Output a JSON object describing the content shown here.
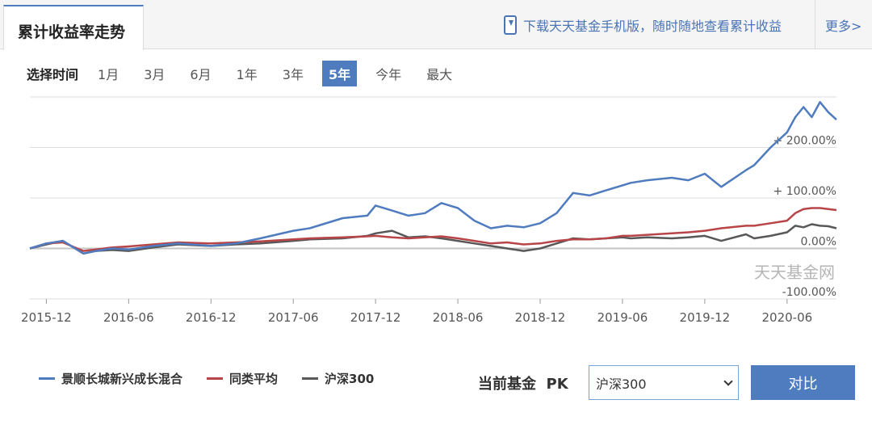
{
  "header": {
    "tab_title": "累计收益率走势",
    "download_text": "下载天天基金手机版，随时随地查看累计收益",
    "more_label": "更多>"
  },
  "range": {
    "label": "选择时间",
    "options": [
      "1月",
      "3月",
      "6月",
      "1年",
      "3年",
      "5年",
      "今年",
      "最大"
    ],
    "active_index": 5
  },
  "chart_data": {
    "type": "line",
    "yticks": [
      "+ 200.00%",
      "+ 100.00%",
      "0.00%",
      "-100.00%"
    ],
    "ytick_values": [
      200,
      100,
      0,
      -100
    ],
    "ylim": [
      -100,
      300
    ],
    "xticks": [
      "2015-12",
      "2016-06",
      "2016-12",
      "2017-06",
      "2017-12",
      "2018-06",
      "2018-12",
      "2019-06",
      "2019-12",
      "2020-06"
    ],
    "xlim": [
      -0.2,
      9.6
    ],
    "watermark": "天天基金网",
    "grid": true,
    "series": [
      {
        "name": "景顺长城新兴成长混合",
        "color": "#4f7bbf",
        "x": [
          -0.2,
          0.0,
          0.2,
          0.45,
          0.6,
          0.8,
          1.0,
          1.3,
          1.6,
          2.0,
          2.3,
          2.6,
          3.0,
          3.2,
          3.6,
          3.9,
          4.0,
          4.2,
          4.4,
          4.6,
          4.8,
          5.0,
          5.2,
          5.4,
          5.6,
          5.8,
          6.0,
          6.2,
          6.4,
          6.6,
          6.8,
          7.0,
          7.1,
          7.3,
          7.6,
          7.8,
          8.0,
          8.2,
          8.5,
          8.6,
          8.8,
          9.0,
          9.1,
          9.2,
          9.3,
          9.4,
          9.5,
          9.6
        ],
        "y": [
          0,
          10,
          15,
          -10,
          -5,
          0,
          -2,
          5,
          10,
          5,
          10,
          20,
          35,
          40,
          60,
          65,
          85,
          75,
          65,
          70,
          90,
          80,
          55,
          40,
          45,
          42,
          50,
          70,
          110,
          105,
          115,
          125,
          130,
          135,
          140,
          135,
          148,
          122,
          155,
          165,
          200,
          230,
          260,
          280,
          260,
          290,
          270,
          255
        ]
      },
      {
        "name": "同类平均",
        "color": "#b74548",
        "x": [
          -0.2,
          0.0,
          0.2,
          0.45,
          0.6,
          0.8,
          1.0,
          1.3,
          1.6,
          2.0,
          2.3,
          2.6,
          3.0,
          3.2,
          3.6,
          3.9,
          4.0,
          4.2,
          4.4,
          4.6,
          4.8,
          5.0,
          5.2,
          5.4,
          5.6,
          5.8,
          6.0,
          6.2,
          6.4,
          6.6,
          6.8,
          7.0,
          7.1,
          7.3,
          7.6,
          7.8,
          8.0,
          8.2,
          8.5,
          8.6,
          8.8,
          9.0,
          9.1,
          9.2,
          9.3,
          9.4,
          9.5,
          9.6
        ],
        "y": [
          0,
          10,
          12,
          -5,
          -2,
          2,
          4,
          8,
          12,
          10,
          12,
          14,
          18,
          20,
          22,
          24,
          25,
          22,
          20,
          22,
          24,
          20,
          15,
          10,
          12,
          8,
          10,
          15,
          18,
          18,
          20,
          25,
          25,
          27,
          30,
          32,
          35,
          40,
          45,
          45,
          50,
          55,
          70,
          78,
          80,
          80,
          78,
          76
        ]
      },
      {
        "name": "沪深300",
        "color": "#585858",
        "x": [
          -0.2,
          0.0,
          0.2,
          0.45,
          0.6,
          0.8,
          1.0,
          1.3,
          1.6,
          2.0,
          2.3,
          2.6,
          3.0,
          3.2,
          3.6,
          3.9,
          4.0,
          4.2,
          4.4,
          4.6,
          4.8,
          5.0,
          5.2,
          5.4,
          5.6,
          5.8,
          6.0,
          6.2,
          6.4,
          6.6,
          6.8,
          7.0,
          7.1,
          7.3,
          7.6,
          7.8,
          8.0,
          8.2,
          8.5,
          8.6,
          8.8,
          9.0,
          9.1,
          9.2,
          9.3,
          9.4,
          9.5,
          9.6
        ],
        "y": [
          0,
          8,
          15,
          -10,
          -5,
          -3,
          -5,
          2,
          8,
          5,
          8,
          10,
          15,
          18,
          20,
          25,
          30,
          35,
          22,
          24,
          20,
          15,
          10,
          5,
          0,
          -5,
          0,
          10,
          20,
          18,
          20,
          22,
          20,
          22,
          20,
          22,
          25,
          15,
          28,
          20,
          25,
          32,
          45,
          42,
          48,
          45,
          44,
          40
        ]
      }
    ]
  },
  "pk": {
    "label": "当前基金  PK",
    "selected": "沪深300",
    "button_label": "对比"
  }
}
